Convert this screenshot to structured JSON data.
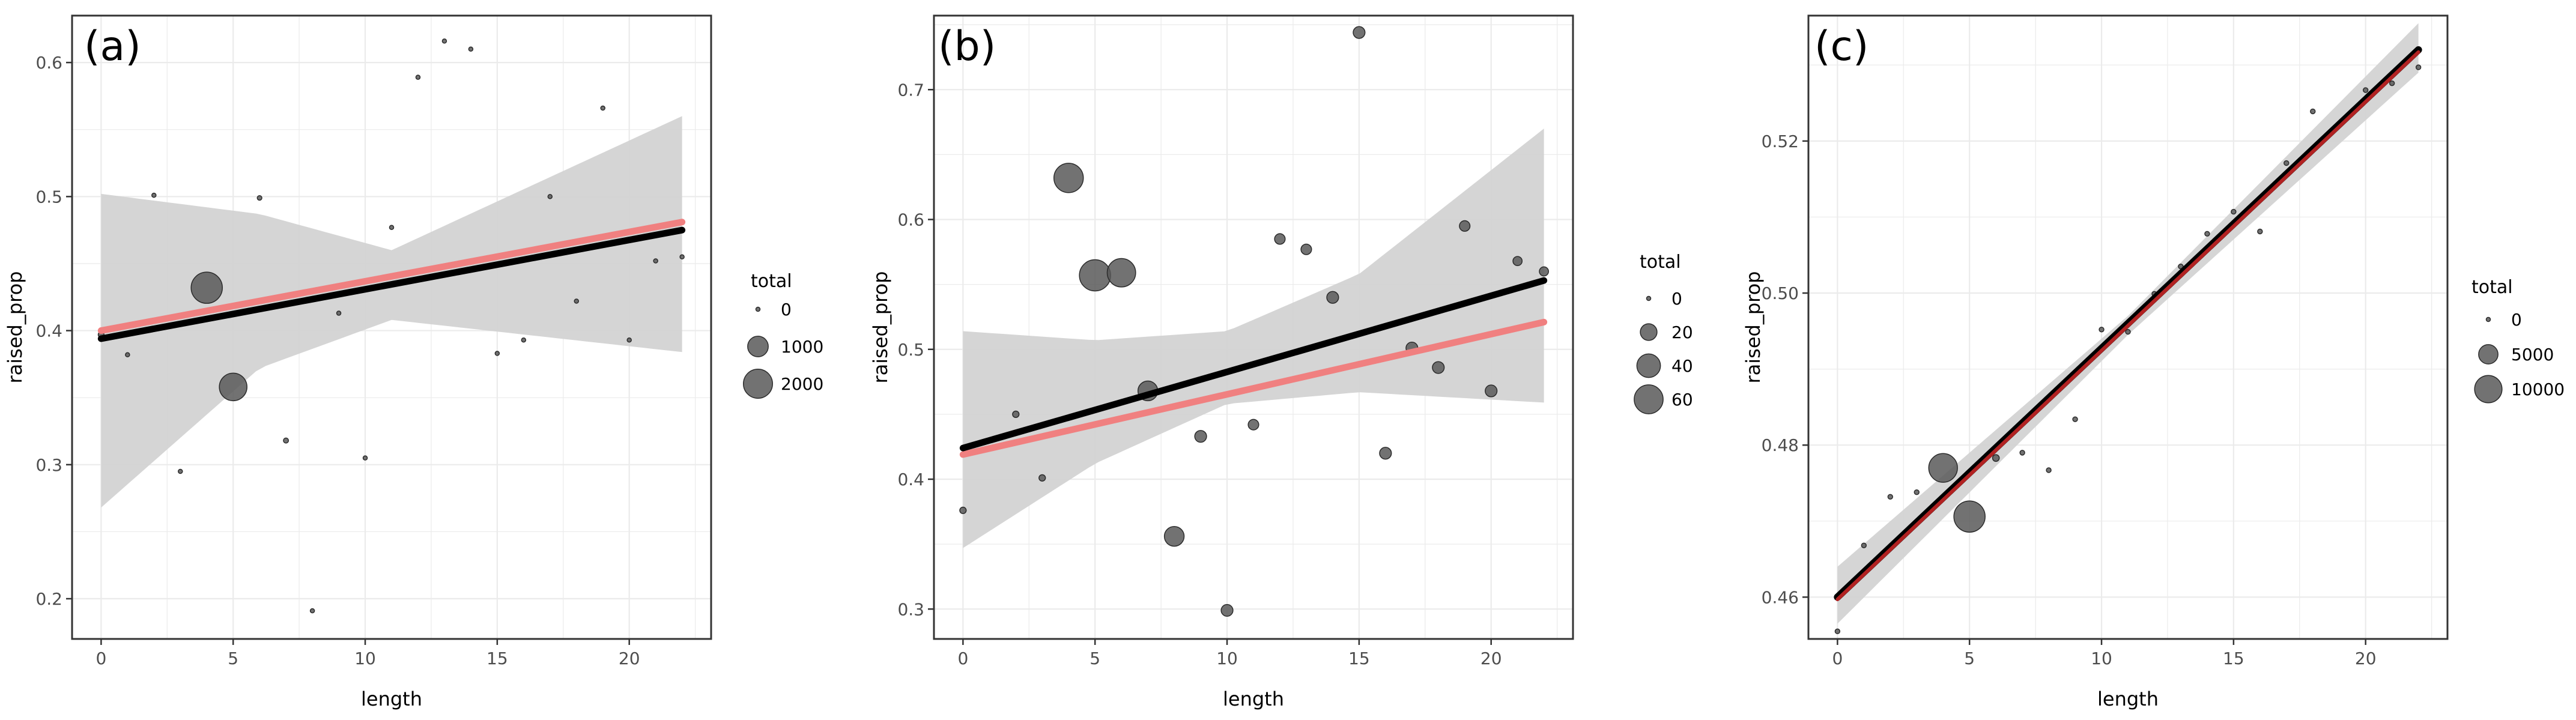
{
  "chart_data": [
    {
      "type": "scatter",
      "panel_label": "(a)",
      "xlabel": "length",
      "ylabel": "raised_prop",
      "xlim": [
        -1.1,
        23.1
      ],
      "ylim": [
        0.17,
        0.635
      ],
      "xticks": [
        0,
        5,
        10,
        15,
        20
      ],
      "xtick_labels": [
        "0",
        "5",
        "10",
        "15",
        "20"
      ],
      "yticks": [
        0.2,
        0.3,
        0.4,
        0.5,
        0.6
      ],
      "ytick_labels": [
        "0.2",
        "0.3",
        "0.4",
        "0.5",
        "0.6"
      ],
      "grid": true,
      "legend": {
        "title": "total",
        "labels": [
          "0",
          "1000",
          "2000"
        ],
        "values": [
          0,
          1000,
          2000
        ],
        "placement": "right"
      },
      "size_max": 2300,
      "points": [
        {
          "x": 0,
          "y": 0.397,
          "total": 80
        },
        {
          "x": 1,
          "y": 0.382,
          "total": 40
        },
        {
          "x": 2,
          "y": 0.501,
          "total": 30
        },
        {
          "x": 3,
          "y": 0.295,
          "total": 30
        },
        {
          "x": 4,
          "y": 0.432,
          "total": 2300
        },
        {
          "x": 5,
          "y": 0.358,
          "total": 1800
        },
        {
          "x": 6,
          "y": 0.499,
          "total": 50
        },
        {
          "x": 7,
          "y": 0.318,
          "total": 60
        },
        {
          "x": 8,
          "y": 0.191,
          "total": 30
        },
        {
          "x": 9,
          "y": 0.413,
          "total": 30
        },
        {
          "x": 10,
          "y": 0.305,
          "total": 30
        },
        {
          "x": 11,
          "y": 0.477,
          "total": 30
        },
        {
          "x": 12,
          "y": 0.589,
          "total": 30
        },
        {
          "x": 13,
          "y": 0.616,
          "total": 30
        },
        {
          "x": 14,
          "y": 0.61,
          "total": 30
        },
        {
          "x": 15,
          "y": 0.383,
          "total": 30
        },
        {
          "x": 16,
          "y": 0.393,
          "total": 30
        },
        {
          "x": 17,
          "y": 0.5,
          "total": 30
        },
        {
          "x": 18,
          "y": 0.422,
          "total": 30
        },
        {
          "x": 19,
          "y": 0.566,
          "total": 30
        },
        {
          "x": 20,
          "y": 0.393,
          "total": 30
        },
        {
          "x": 21,
          "y": 0.452,
          "total": 30
        },
        {
          "x": 22,
          "y": 0.455,
          "total": 30
        }
      ],
      "fit_black": {
        "x": [
          0,
          22
        ],
        "y": [
          0.394,
          0.475
        ]
      },
      "fit_red": {
        "x": [
          0,
          22
        ],
        "y": [
          0.4,
          0.481
        ]
      },
      "ribbon": {
        "x": [
          0,
          6,
          11,
          22
        ],
        "lower": [
          0.268,
          0.372,
          0.408,
          0.384
        ],
        "upper": [
          0.502,
          0.487,
          0.46,
          0.56
        ]
      },
      "colors": {
        "black_line": "#000000",
        "red_line": "#f08080",
        "ribbon": "#d3d3d3",
        "points": "#595959"
      }
    },
    {
      "type": "scatter",
      "panel_label": "(b)",
      "xlabel": "length",
      "ylabel": "raised_prop",
      "xlim": [
        -1.1,
        23.1
      ],
      "ylim": [
        0.277,
        0.757
      ],
      "xticks": [
        0,
        5,
        10,
        15,
        20
      ],
      "xtick_labels": [
        "0",
        "5",
        "10",
        "15",
        "20"
      ],
      "yticks": [
        0.3,
        0.4,
        0.5,
        0.6,
        0.7
      ],
      "ytick_labels": [
        "0.3",
        "0.4",
        "0.5",
        "0.6",
        "0.7"
      ],
      "grid": true,
      "legend": {
        "title": "total",
        "labels": [
          "0",
          "20",
          "40",
          "60"
        ],
        "values": [
          0,
          20,
          40,
          60
        ],
        "placement": "right"
      },
      "size_max": 70,
      "points": [
        {
          "x": 0,
          "y": 0.376,
          "total": 3
        },
        {
          "x": 2,
          "y": 0.45,
          "total": 3
        },
        {
          "x": 3,
          "y": 0.401,
          "total": 3
        },
        {
          "x": 4,
          "y": 0.632,
          "total": 62
        },
        {
          "x": 5,
          "y": 0.557,
          "total": 70
        },
        {
          "x": 6,
          "y": 0.559,
          "total": 58
        },
        {
          "x": 7,
          "y": 0.468,
          "total": 28
        },
        {
          "x": 8,
          "y": 0.356,
          "total": 28
        },
        {
          "x": 9,
          "y": 0.433,
          "total": 10
        },
        {
          "x": 10,
          "y": 0.299,
          "total": 10
        },
        {
          "x": 11,
          "y": 0.442,
          "total": 8
        },
        {
          "x": 12,
          "y": 0.585,
          "total": 8
        },
        {
          "x": 13,
          "y": 0.577,
          "total": 8
        },
        {
          "x": 14,
          "y": 0.54,
          "total": 10
        },
        {
          "x": 15,
          "y": 0.744,
          "total": 10
        },
        {
          "x": 16,
          "y": 0.42,
          "total": 10
        },
        {
          "x": 17,
          "y": 0.501,
          "total": 10
        },
        {
          "x": 18,
          "y": 0.486,
          "total": 10
        },
        {
          "x": 19,
          "y": 0.595,
          "total": 8
        },
        {
          "x": 20,
          "y": 0.468,
          "total": 10
        },
        {
          "x": 21,
          "y": 0.568,
          "total": 6
        },
        {
          "x": 22,
          "y": 0.56,
          "total": 6
        }
      ],
      "fit_black": {
        "x": [
          0,
          22
        ],
        "y": [
          0.424,
          0.553
        ]
      },
      "fit_red": {
        "x": [
          0,
          22
        ],
        "y": [
          0.419,
          0.521
        ]
      },
      "ribbon": {
        "x": [
          0,
          5,
          10,
          15,
          22
        ],
        "lower": [
          0.347,
          0.412,
          0.458,
          0.467,
          0.459
        ],
        "upper": [
          0.514,
          0.507,
          0.514,
          0.558,
          0.67
        ]
      },
      "colors": {
        "black_line": "#000000",
        "red_line": "#f08080",
        "ribbon": "#d3d3d3",
        "points": "#595959"
      }
    },
    {
      "type": "scatter",
      "panel_label": "(c)",
      "xlabel": "length",
      "ylabel": "raised_prop",
      "xlim": [
        -1.1,
        23.1
      ],
      "ylim": [
        0.4545,
        0.5365
      ],
      "xticks": [
        0,
        5,
        10,
        15,
        20
      ],
      "xtick_labels": [
        "0",
        "5",
        "10",
        "15",
        "20"
      ],
      "yticks": [
        0.46,
        0.48,
        0.5,
        0.52
      ],
      "ytick_labels": [
        "0.46",
        "0.48",
        "0.50",
        "0.52"
      ],
      "grid": true,
      "legend": {
        "title": "total",
        "labels": [
          "0",
          "5000",
          "10000"
        ],
        "values": [
          0,
          5000,
          10000
        ],
        "placement": "right"
      },
      "size_max": 13000,
      "points": [
        {
          "x": 0,
          "y": 0.4555,
          "total": 300
        },
        {
          "x": 1,
          "y": 0.4668,
          "total": 300
        },
        {
          "x": 2,
          "y": 0.4732,
          "total": 300
        },
        {
          "x": 3,
          "y": 0.4738,
          "total": 300
        },
        {
          "x": 4,
          "y": 0.477,
          "total": 11000
        },
        {
          "x": 5,
          "y": 0.4706,
          "total": 13000
        },
        {
          "x": 6,
          "y": 0.4783,
          "total": 600
        },
        {
          "x": 7,
          "y": 0.479,
          "total": 300
        },
        {
          "x": 8,
          "y": 0.4767,
          "total": 300
        },
        {
          "x": 9,
          "y": 0.4834,
          "total": 300
        },
        {
          "x": 10,
          "y": 0.4952,
          "total": 300
        },
        {
          "x": 11,
          "y": 0.4949,
          "total": 300
        },
        {
          "x": 12,
          "y": 0.4999,
          "total": 300
        },
        {
          "x": 13,
          "y": 0.5035,
          "total": 300
        },
        {
          "x": 14,
          "y": 0.5078,
          "total": 300
        },
        {
          "x": 15,
          "y": 0.5107,
          "total": 300
        },
        {
          "x": 16,
          "y": 0.5081,
          "total": 300
        },
        {
          "x": 17,
          "y": 0.5171,
          "total": 300
        },
        {
          "x": 18,
          "y": 0.5239,
          "total": 300
        },
        {
          "x": 19,
          "y": 0.5222,
          "total": 300
        },
        {
          "x": 20,
          "y": 0.5267,
          "total": 300
        },
        {
          "x": 21,
          "y": 0.5276,
          "total": 300
        },
        {
          "x": 22,
          "y": 0.5297,
          "total": 300
        }
      ],
      "fit_black": {
        "x": [
          0,
          22
        ],
        "y": [
          0.46,
          0.532
        ]
      },
      "fit_red": {
        "x": [
          0,
          22
        ],
        "y": [
          0.4597,
          0.5317
        ]
      },
      "ribbon": {
        "x": [
          0,
          11,
          22
        ],
        "lower": [
          0.4565,
          0.4945,
          0.529
        ],
        "upper": [
          0.464,
          0.497,
          0.5355
        ]
      },
      "colors": {
        "black_line": "#000000",
        "red_line": "#b22222",
        "ribbon": "#d3d3d3",
        "points": "#595959"
      }
    }
  ]
}
